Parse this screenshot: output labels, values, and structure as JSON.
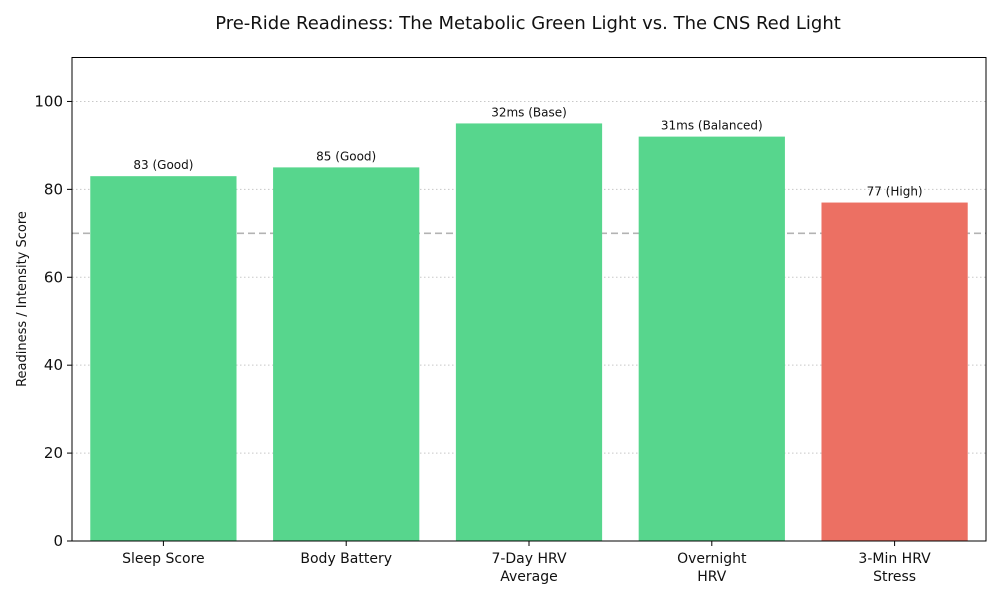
{
  "chart_data": {
    "type": "bar",
    "title": "Pre-Ride Readiness: The Metabolic Green Light vs. The CNS Red Light",
    "xlabel": "",
    "ylabel": "Readiness / Intensity Score",
    "ylim": [
      0,
      110
    ],
    "yticks": [
      "0",
      "20",
      "40",
      "60",
      "80",
      "100"
    ],
    "grid": "horizontal-dotted",
    "reference_line": 70,
    "categories": [
      [
        "Sleep Score"
      ],
      [
        "Body Battery"
      ],
      [
        "7-Day HRV",
        "Average"
      ],
      [
        "Overnight",
        "HRV"
      ],
      [
        "3-Min HRV",
        "Stress"
      ]
    ],
    "values": [
      83,
      85,
      95,
      92,
      77
    ],
    "data_labels": [
      "83 (Good)",
      "85 (Good)",
      "32ms (Base)",
      "31ms (Balanced)",
      "77 (High)"
    ],
    "bar_colors": [
      "#57d68d",
      "#57d68d",
      "#57d68d",
      "#57d68d",
      "#ec7063"
    ]
  }
}
